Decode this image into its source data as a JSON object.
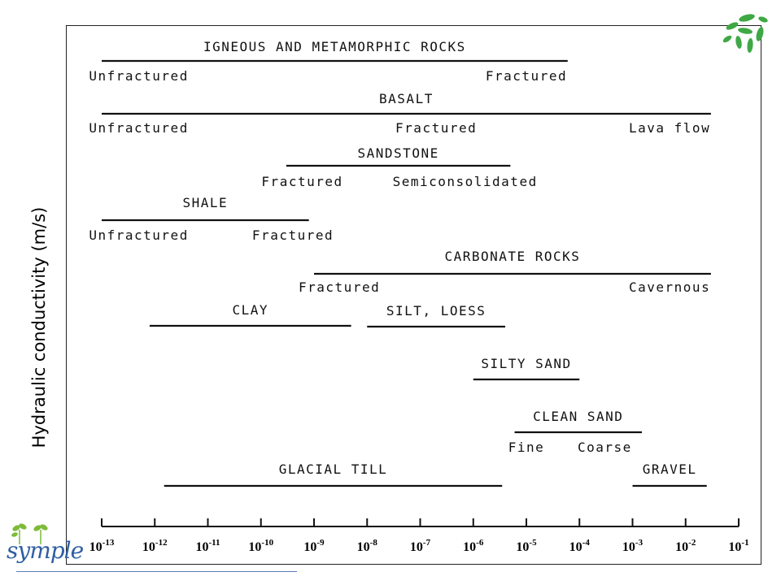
{
  "slide": {
    "y_axis_title": "Hydraulic conductivity (m/s)",
    "brand_text": "symple",
    "colors": {
      "logo_green": "#3fa845",
      "brand_blue": "#2f5ea3",
      "ink": "#111111"
    }
  },
  "chart_data": {
    "type": "range",
    "title": "",
    "xlabel": "Hydraulic conductivity (m/s)",
    "x_scale": "log",
    "xlim": [
      "1e-13",
      "1e-1"
    ],
    "ticks": [
      {
        "base": "10",
        "exp": "-13",
        "value": 1e-13
      },
      {
        "base": "10",
        "exp": "-12",
        "value": 1e-12
      },
      {
        "base": "10",
        "exp": "-11",
        "value": 1e-11
      },
      {
        "base": "10",
        "exp": "-10",
        "value": 1e-10
      },
      {
        "base": "10",
        "exp": "-9",
        "value": 1e-09
      },
      {
        "base": "10",
        "exp": "-8",
        "value": 1e-08
      },
      {
        "base": "10",
        "exp": "-7",
        "value": 1e-07
      },
      {
        "base": "10",
        "exp": "-6",
        "value": 1e-06
      },
      {
        "base": "10",
        "exp": "-5",
        "value": 1e-05
      },
      {
        "base": "10",
        "exp": "-4",
        "value": 0.0001
      },
      {
        "base": "10",
        "exp": "-3",
        "value": 0.001
      },
      {
        "base": "10",
        "exp": "-2",
        "value": 0.01
      },
      {
        "base": "10",
        "exp": "-1",
        "value": 0.1
      }
    ],
    "series": [
      {
        "name": "IGNEOUS AND METAMORPHIC ROCKS",
        "range": [
          1e-13,
          6e-05
        ],
        "sublabels": [
          {
            "text": "Unfractured",
            "at": 5e-13
          },
          {
            "text": "Fractured",
            "at": 1e-05
          }
        ]
      },
      {
        "name": "BASALT",
        "range": [
          1e-13,
          0.03
        ],
        "sublabels": [
          {
            "text": "Unfractured",
            "at": 5e-13
          },
          {
            "text": "Fractured",
            "at": 2e-07
          },
          {
            "text": "Lava flow",
            "at": 0.005
          }
        ]
      },
      {
        "name": "SANDSTONE",
        "range": [
          3e-10,
          5e-06
        ],
        "sublabels": [
          {
            "text": "Fractured",
            "at": 6e-10
          },
          {
            "text": "Semiconsolidated",
            "at": 7e-07
          }
        ]
      },
      {
        "name": "SHALE",
        "range": [
          1e-13,
          8e-10
        ],
        "sublabels": [
          {
            "text": "Unfractured",
            "at": 5e-13
          },
          {
            "text": "Fractured",
            "at": 4e-10
          }
        ]
      },
      {
        "name": "CARBONATE ROCKS",
        "range": [
          1e-09,
          0.03
        ],
        "sublabels": [
          {
            "text": "Fractured",
            "at": 3e-09
          },
          {
            "text": "Cavernous",
            "at": 0.005
          }
        ]
      },
      {
        "name": "CLAY",
        "range": [
          8e-13,
          5e-09
        ],
        "sublabels": []
      },
      {
        "name": "SILT, LOESS",
        "range": [
          1e-08,
          4e-06
        ],
        "sublabels": []
      },
      {
        "name": "SILTY SAND",
        "range": [
          1e-06,
          0.0001
        ],
        "sublabels": []
      },
      {
        "name": "CLEAN SAND",
        "range": [
          6e-06,
          0.0015
        ],
        "sublabels": [
          {
            "text": "Fine",
            "at": 1e-05
          },
          {
            "text": "Coarse",
            "at": 0.0003
          }
        ]
      },
      {
        "name": "GLACIAL TILL",
        "range": [
          1.5e-12,
          3.5e-06
        ],
        "sublabels": []
      },
      {
        "name": "GRAVEL",
        "range": [
          0.001,
          0.025
        ],
        "sublabels": []
      }
    ]
  }
}
